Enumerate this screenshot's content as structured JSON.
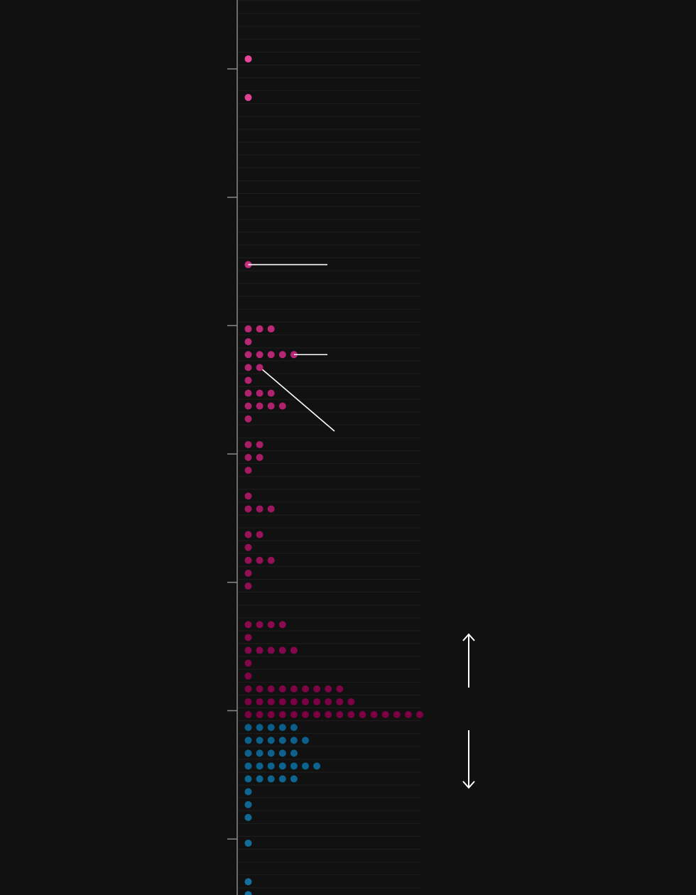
{
  "chart_data": {
    "type": "scatter",
    "subtype": "dot-histogram",
    "title": "",
    "xlabel": "",
    "ylabel": "",
    "tick_labels": [],
    "grid": true,
    "bins_total": 70,
    "bin_counts": [
      0,
      0,
      0,
      0,
      1,
      0,
      0,
      1,
      0,
      0,
      0,
      0,
      0,
      0,
      0,
      0,
      0,
      0,
      0,
      0,
      1,
      0,
      0,
      0,
      0,
      3,
      1,
      5,
      2,
      1,
      3,
      4,
      1,
      0,
      2,
      2,
      1,
      0,
      1,
      3,
      0,
      2,
      1,
      3,
      1,
      1,
      0,
      0,
      4,
      1,
      5,
      1,
      1,
      9,
      10,
      16,
      5,
      6,
      5,
      7,
      5,
      1,
      1,
      1,
      0,
      1,
      0,
      0,
      1,
      1
    ],
    "split_bin": 56,
    "highlighted_bins": [
      20,
      27,
      28
    ],
    "colors": {
      "background": "#111111",
      "axis": "#8a8a8a",
      "grid": "#1e1e1e",
      "upper_light": "#e8469a",
      "upper_dark": "#7a0042",
      "lower": "#0a5f8a",
      "lower_light": "#1572a0",
      "annotation": "#ffffff"
    },
    "arrows": [
      {
        "direction": "up",
        "icon": "arrow-up-icon"
      },
      {
        "direction": "down",
        "icon": "arrow-down-icon"
      }
    ]
  }
}
